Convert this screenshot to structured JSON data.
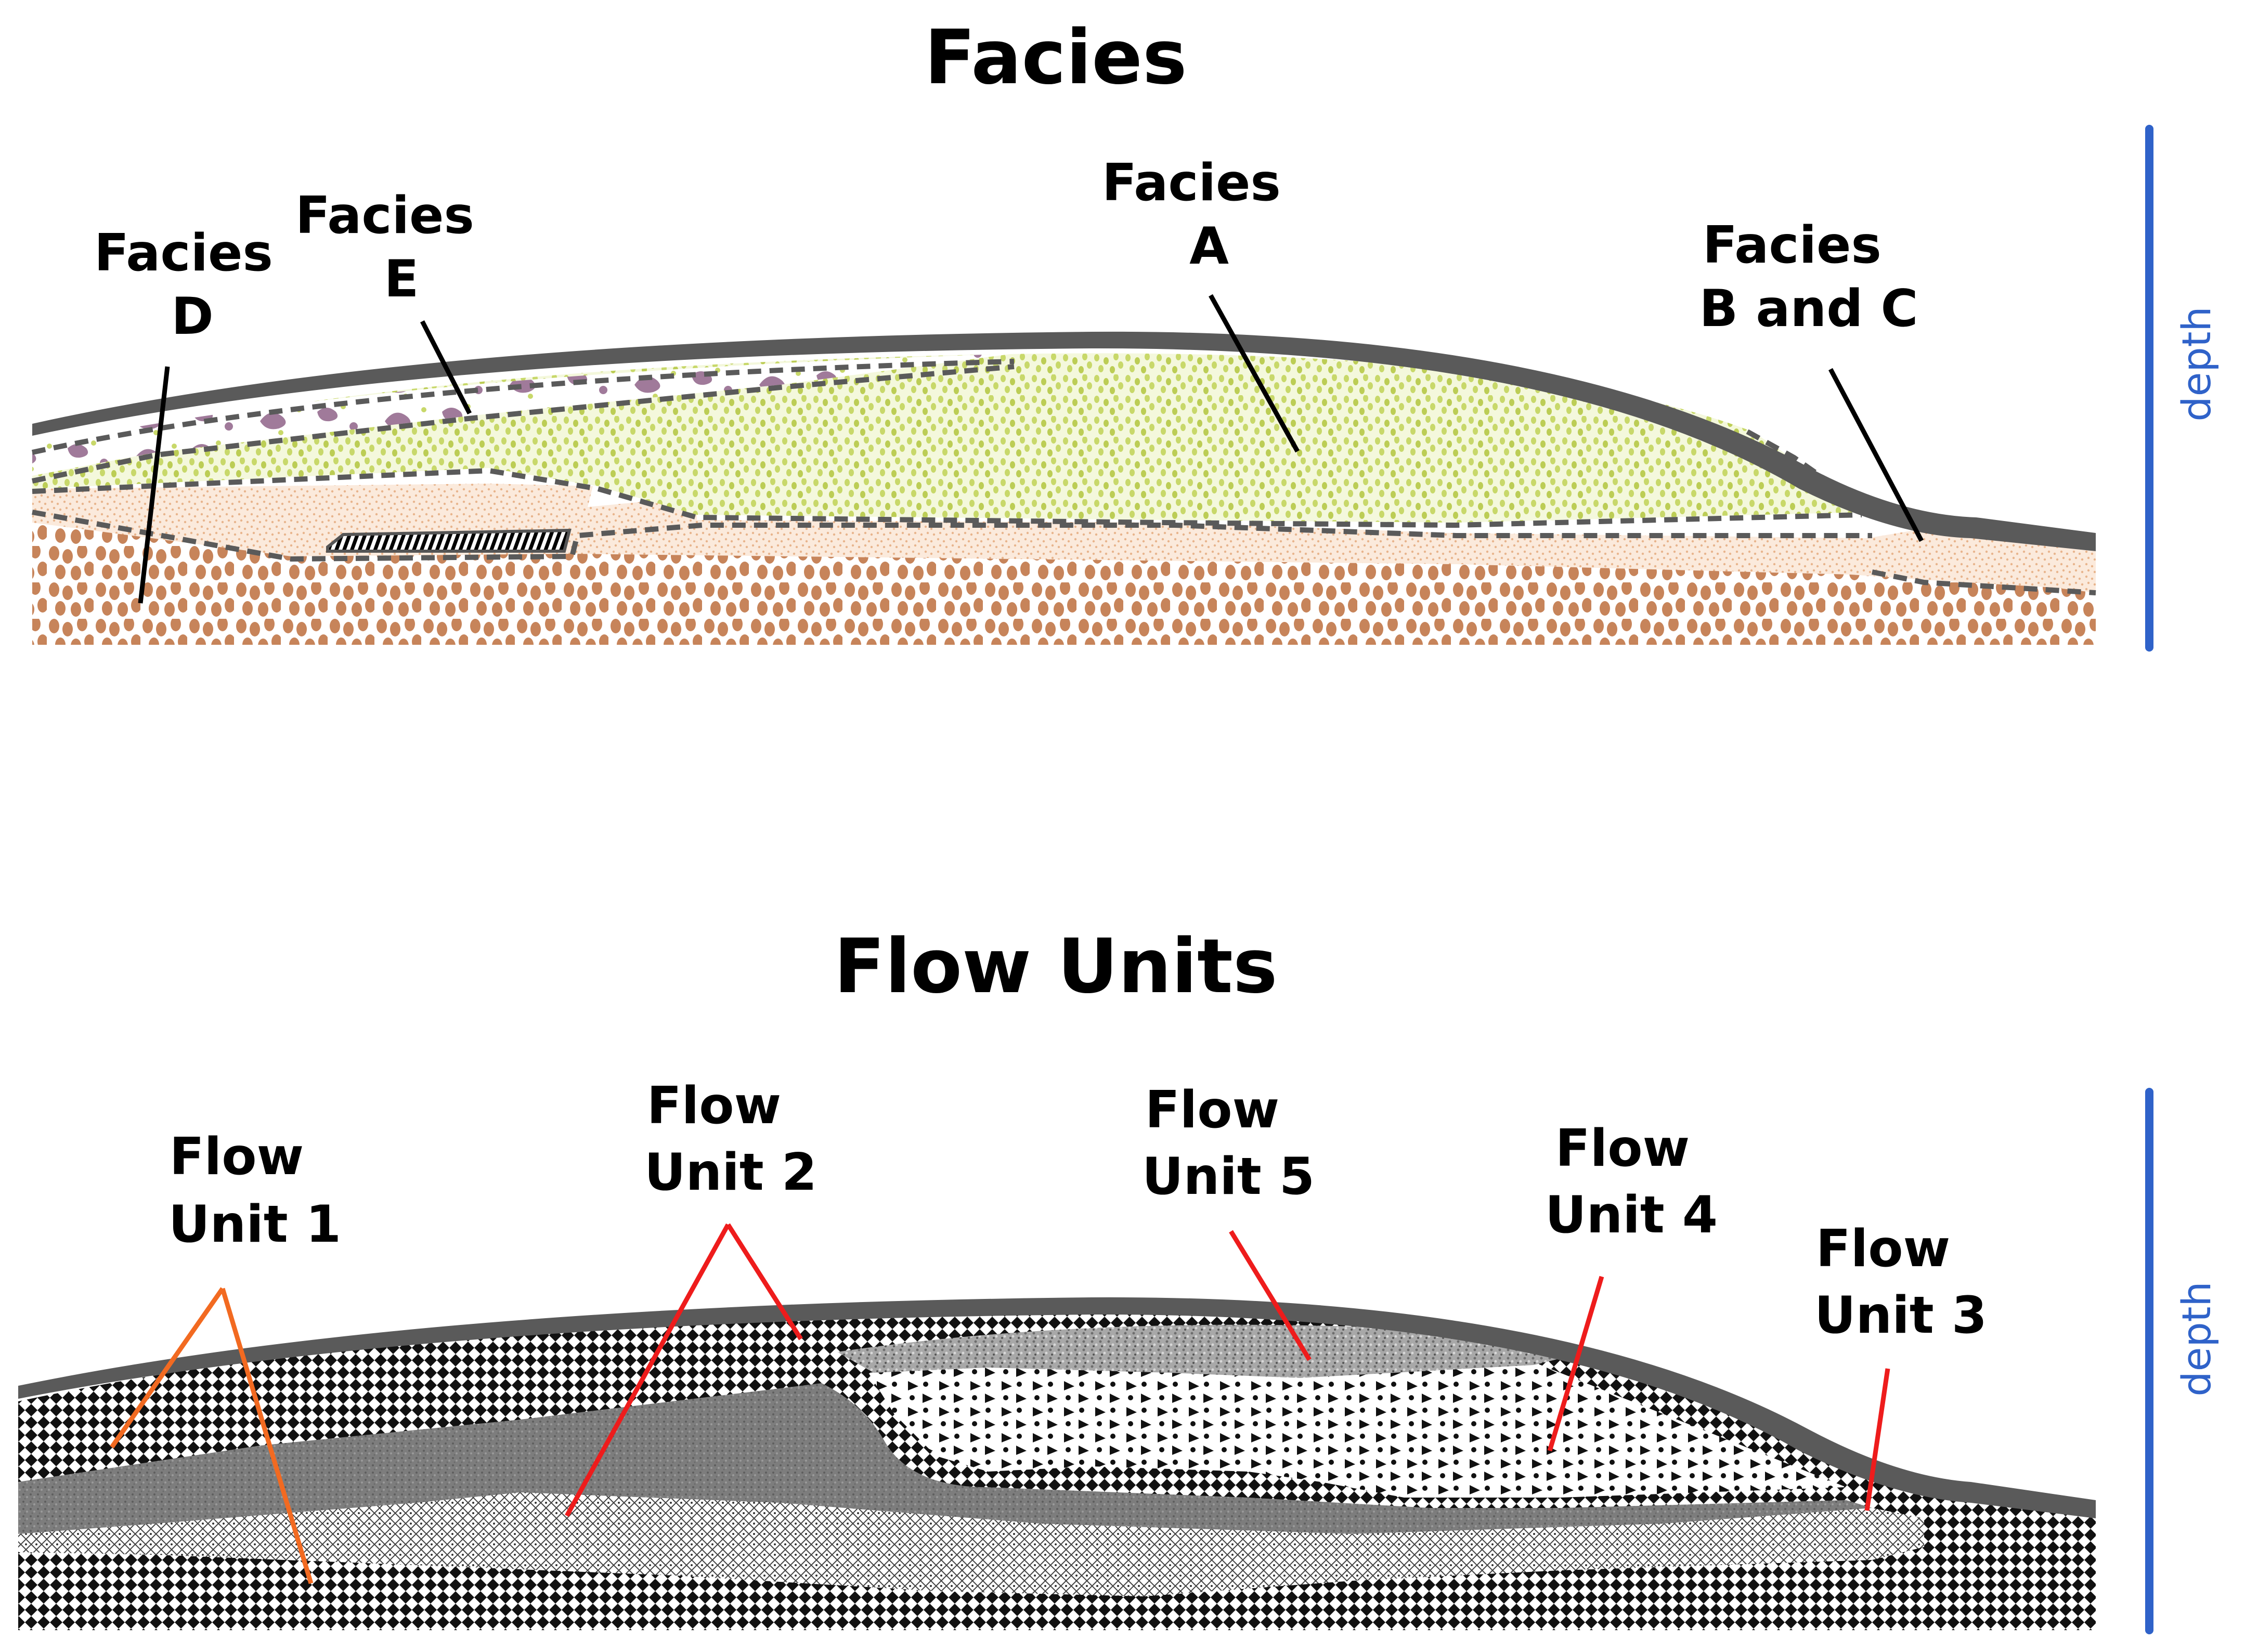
{
  "facies": {
    "title": "Facies",
    "labels": {
      "d": [
        "Facies",
        "D"
      ],
      "e": [
        "Facies",
        "E"
      ],
      "a": [
        "Facies",
        "A"
      ],
      "bc": [
        "Facies",
        "B and C"
      ]
    },
    "axis_label": "depth"
  },
  "flow_units": {
    "title": "Flow Units",
    "labels": {
      "u1": [
        "Flow",
        "Unit 1"
      ],
      "u2": [
        "Flow",
        "Unit 2"
      ],
      "u5": [
        "Flow",
        "Unit 5"
      ],
      "u4": [
        "Flow",
        "Unit 4"
      ],
      "u3": [
        "Flow",
        "Unit 3"
      ]
    },
    "axis_label": "depth"
  },
  "colors": {
    "facies_a": "#c8d86a",
    "facies_bc": "#f3d9c4",
    "facies_d": "#c7845a",
    "facies_e": "#a07a9a",
    "cap": "#5a5a5a",
    "depth_axis": "#2f62c9",
    "facies_leader": "#000000",
    "unit1_leader": "#f26a21",
    "flow_leader": "#ee1c1c"
  }
}
